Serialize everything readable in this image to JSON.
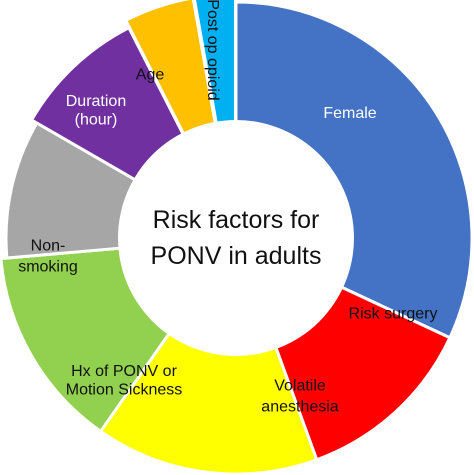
{
  "center": {
    "line1": "Risk factors for",
    "line2": "PONV in adults"
  },
  "segments": [
    {
      "key": "female",
      "lines": [
        "Female"
      ],
      "color": "#4472c4",
      "text_color": "#ffffff"
    },
    {
      "key": "risk-surgery",
      "lines": [
        "Risk surgery"
      ],
      "color": "#ff0000",
      "text_color": "#111111"
    },
    {
      "key": "volatile-anesthesia",
      "lines": [
        "Volatile",
        "anesthesia"
      ],
      "color": "#ffff00",
      "text_color": "#111111"
    },
    {
      "key": "hx-ponv",
      "lines": [
        "Hx of PONV or",
        "Motion Sickness"
      ],
      "color": "#92d050",
      "text_color": "#111111"
    },
    {
      "key": "non-smoking",
      "lines": [
        "Non-",
        "smoking"
      ],
      "color": "#a6a6a6",
      "text_color": "#111111"
    },
    {
      "key": "duration",
      "lines": [
        "Duration",
        "(hour)"
      ],
      "color": "#7030a0",
      "text_color": "#ffffff"
    },
    {
      "key": "age",
      "lines": [
        "Age"
      ],
      "color": "#ffc000",
      "text_color": "#111111"
    },
    {
      "key": "post-op-opioid",
      "lines": [
        "Post op opioid"
      ],
      "color": "#00b0f0",
      "text_color": "#111111"
    }
  ]
}
